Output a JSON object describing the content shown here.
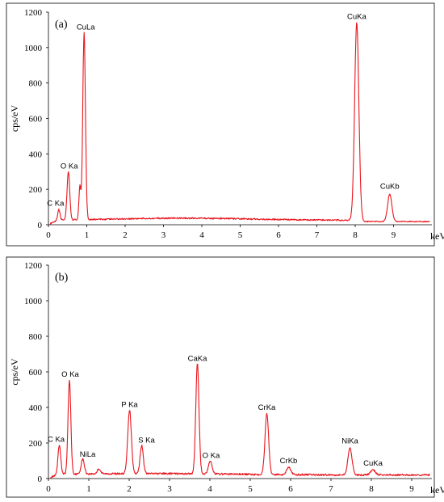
{
  "chart_data": [
    {
      "type": "line",
      "panel_label": "(a)",
      "xlabel": "keV",
      "ylabel": "cps/eV",
      "xlim": [
        0,
        10
      ],
      "ylim": [
        0,
        1200
      ],
      "x_ticks": [
        0,
        1,
        2,
        3,
        4,
        5,
        6,
        7,
        8,
        9
      ],
      "y_ticks": [
        0,
        200,
        400,
        600,
        800,
        1000,
        1200
      ],
      "baseline": 25,
      "color": "#e8141c",
      "peaks": [
        {
          "label": "C Ka",
          "x": 0.27,
          "y": 75,
          "w": 0.03
        },
        {
          "label": "O Ka",
          "x": 0.52,
          "y": 285,
          "w": 0.035
        },
        {
          "label": "",
          "x": 0.82,
          "y": 200,
          "w": 0.025
        },
        {
          "label": "CuLa",
          "x": 0.93,
          "y": 1070,
          "w": 0.035
        },
        {
          "label": "CuKa",
          "x": 8.04,
          "y": 1130,
          "w": 0.055
        },
        {
          "label": "CuKb",
          "x": 8.9,
          "y": 170,
          "w": 0.055
        }
      ]
    },
    {
      "type": "line",
      "panel_label": "(b)",
      "xlabel": "keV",
      "ylabel": "cps/eV",
      "xlim": [
        0,
        9.5
      ],
      "ylim": [
        0,
        1200
      ],
      "x_ticks": [
        0,
        1,
        2,
        3,
        4,
        5,
        6,
        7,
        8,
        9
      ],
      "y_ticks": [
        0,
        200,
        400,
        600,
        800,
        1000,
        1200
      ],
      "baseline": 20,
      "color": "#e8141c",
      "peaks": [
        {
          "label": "C Ka",
          "x": 0.27,
          "y": 175,
          "w": 0.035
        },
        {
          "label": "O Ka",
          "x": 0.52,
          "y": 540,
          "w": 0.035
        },
        {
          "label": "NiLa",
          "x": 0.85,
          "y": 95,
          "w": 0.04
        },
        {
          "label": "",
          "x": 1.25,
          "y": 40,
          "w": 0.04
        },
        {
          "label": "P Ka",
          "x": 2.01,
          "y": 370,
          "w": 0.045
        },
        {
          "label": "S Ka",
          "x": 2.31,
          "y": 170,
          "w": 0.04
        },
        {
          "label": "CaKa",
          "x": 3.69,
          "y": 630,
          "w": 0.04
        },
        {
          "label": "O Ka",
          "x": 4.01,
          "y": 85,
          "w": 0.045
        },
        {
          "label": "CrKa",
          "x": 5.41,
          "y": 355,
          "w": 0.045
        },
        {
          "label": "CrKb",
          "x": 5.95,
          "y": 55,
          "w": 0.05
        },
        {
          "label": "NiKa",
          "x": 7.47,
          "y": 165,
          "w": 0.05
        },
        {
          "label": "CuKa",
          "x": 8.04,
          "y": 40,
          "w": 0.06
        }
      ]
    }
  ]
}
